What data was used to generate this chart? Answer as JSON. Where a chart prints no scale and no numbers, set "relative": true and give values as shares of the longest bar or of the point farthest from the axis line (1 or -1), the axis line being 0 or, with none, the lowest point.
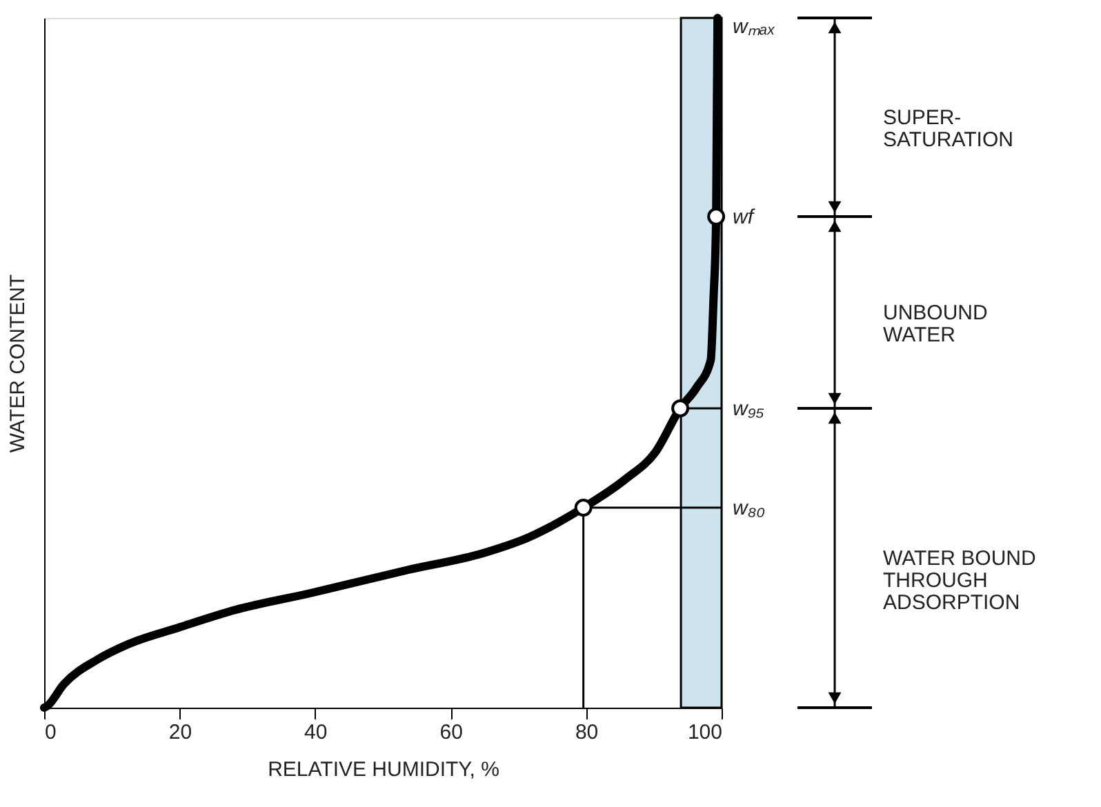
{
  "chart_data": {
    "type": "line",
    "xlabel": "RELATIVE HUMIDITY, %",
    "ylabel": "WATER CONTENT",
    "relative": true,
    "xlim": [
      0,
      100
    ],
    "xticks": [
      0,
      20,
      40,
      60,
      80,
      100
    ],
    "grid": false,
    "series": [
      {
        "color": "#000000",
        "x": [
          0,
          0.4,
          2.9,
          7.9,
          12.4,
          19.8,
          28.3,
          39.3,
          53.8,
          64.8,
          71.3,
          79.6,
          85.9,
          90.2,
          93.9,
          96.3,
          98.4,
          98.8,
          99.2,
          99.4
        ],
        "values": [
          0,
          0.002,
          0.034,
          0.07,
          0.092,
          0.116,
          0.142,
          0.166,
          0.2,
          0.224,
          0.246,
          0.29,
          0.332,
          0.37,
          0.434,
          0.464,
          0.504,
          0.59,
          0.712,
          1.0
        ]
      },
      {
        "color": "#000000",
        "x": [
          79.6,
          79.6
        ],
        "values": [
          0,
          0.29
        ]
      }
    ],
    "annotations": [
      {
        "text": "w₈₀",
        "x": 79.6,
        "y": 0.29
      },
      {
        "text": "w₉₅",
        "x": 93.9,
        "y": 0.434
      },
      {
        "text": "wf",
        "x": 99.2,
        "y": 0.712
      },
      "wₘₐₓ",
      "SUPER-\nSATURATION",
      "UNBOUND\nWATER",
      "WATER BOUND\nTHROUGH\nADSORPTION"
    ],
    "bands": [
      {
        "axis": "x",
        "from": 94,
        "to": 100,
        "color": "#cde4ee"
      }
    ]
  }
}
